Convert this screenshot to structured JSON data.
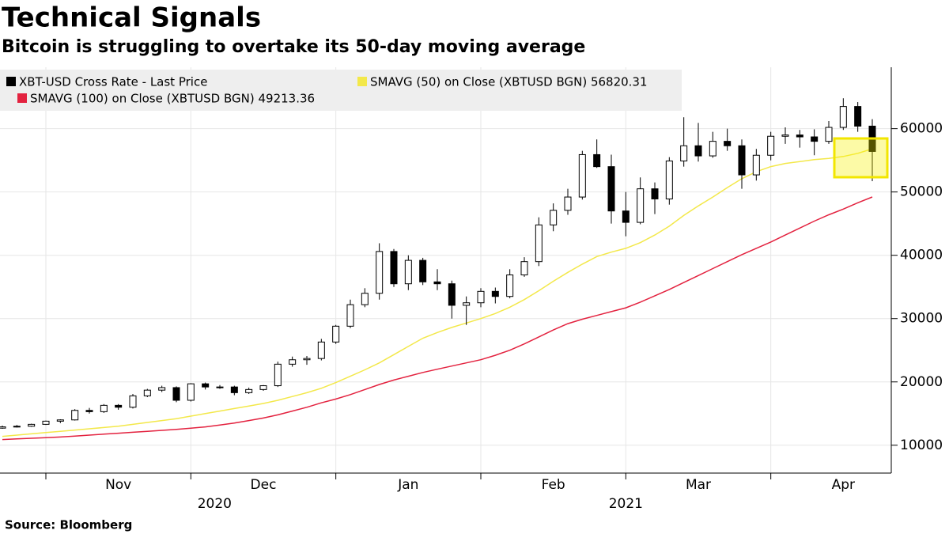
{
  "chart_data": {
    "type": "candlestick",
    "title": "Technical Signals",
    "subtitle": "Bitcoin is struggling to overtake its 50-day moving average",
    "source": "Source: Bloomberg",
    "categories": [
      null,
      null,
      null,
      null,
      null,
      null,
      null,
      null,
      "Nov",
      null,
      null,
      null,
      null,
      null,
      null,
      null,
      null,
      null,
      "Dec",
      null,
      null,
      null,
      null,
      null,
      null,
      null,
      null,
      null,
      "Jan",
      null,
      null,
      null,
      null,
      null,
      null,
      null,
      null,
      null,
      "Feb",
      null,
      null,
      null,
      null,
      null,
      null,
      null,
      null,
      null,
      "Mar",
      null,
      null,
      null,
      null,
      null,
      null,
      null,
      null,
      null,
      "Apr",
      null,
      null
    ],
    "years": [
      "2020",
      "2021"
    ],
    "ylim": [
      5600,
      69700
    ],
    "yticks": [
      10000,
      20000,
      30000,
      40000,
      50000,
      60000
    ],
    "legend": "top-left",
    "grid": true,
    "candles": {
      "name": "XBT-USD Cross Rate - Last Price",
      "color": "#000000",
      "open": [
        12700,
        12900,
        13000,
        13300,
        13800,
        14000,
        15500,
        15300,
        16300,
        16000,
        17800,
        18700,
        19100,
        17100,
        19700,
        19200,
        19200,
        18300,
        18800,
        19400,
        22800,
        23500,
        23700,
        26300,
        28800,
        32200,
        34000,
        40600,
        35500,
        39200,
        35800,
        35500,
        32100,
        32500,
        34300,
        33500,
        36900,
        39000,
        44800,
        47100,
        49200,
        55900,
        54000,
        47000,
        45200,
        50500,
        48900,
        54900,
        57300,
        55700,
        58000,
        57300,
        52700,
        55800,
        58800,
        59000,
        58700,
        58000,
        60200,
        63500,
        60400
      ],
      "high": [
        13100,
        13200,
        13400,
        13900,
        14100,
        15700,
        15900,
        16500,
        16500,
        18100,
        18900,
        19400,
        19300,
        19800,
        19900,
        19500,
        19400,
        19100,
        19500,
        23200,
        24000,
        24100,
        26800,
        29000,
        33000,
        34800,
        41900,
        41000,
        40000,
        39600,
        37800,
        36000,
        33500,
        34800,
        34900,
        37800,
        39700,
        46000,
        48200,
        50500,
        56500,
        58300,
        55900,
        50000,
        52300,
        51500,
        55500,
        61800,
        60900,
        59500,
        60000,
        58300,
        56800,
        59500,
        60200,
        59800,
        59900,
        61200,
        64800,
        64200,
        61500
      ],
      "low": [
        12600,
        12800,
        12900,
        13200,
        13500,
        13900,
        15000,
        15100,
        15600,
        15800,
        17600,
        18400,
        16800,
        16900,
        18800,
        18900,
        17900,
        18100,
        18600,
        19200,
        22400,
        22700,
        23400,
        26000,
        28500,
        31800,
        33000,
        35000,
        34500,
        35300,
        34500,
        30000,
        29000,
        31800,
        32400,
        33200,
        36600,
        38300,
        43800,
        46400,
        48800,
        53800,
        45000,
        43000,
        44900,
        46500,
        48000,
        54000,
        54800,
        55400,
        56500,
        50500,
        51800,
        55000,
        57600,
        57000,
        55800,
        57600,
        59800,
        59500,
        51700
      ],
      "close": [
        12900,
        13000,
        13300,
        13800,
        14000,
        15500,
        15300,
        16300,
        16000,
        17800,
        18700,
        19100,
        17100,
        19700,
        19200,
        19200,
        18300,
        18800,
        19400,
        22800,
        23500,
        23700,
        26300,
        28800,
        32200,
        34000,
        40600,
        35500,
        39200,
        35800,
        35500,
        32100,
        32500,
        34300,
        33500,
        36900,
        39000,
        44800,
        47100,
        49200,
        55900,
        54000,
        47000,
        45200,
        50500,
        48900,
        54900,
        57300,
        55700,
        58000,
        57300,
        52700,
        55800,
        58800,
        59000,
        58700,
        58000,
        60200,
        63500,
        60400,
        56400
      ]
    },
    "series": [
      {
        "name": "SMAVG (50)  on Close (XBTUSD BGN) 56820.31",
        "color": "#f3e84a",
        "values": [
          11400,
          11600,
          11800,
          12000,
          12200,
          12400,
          12600,
          12800,
          13000,
          13300,
          13600,
          13900,
          14200,
          14600,
          15000,
          15400,
          15800,
          16200,
          16600,
          17100,
          17700,
          18300,
          19000,
          19900,
          20900,
          21900,
          23000,
          24300,
          25600,
          26900,
          27800,
          28600,
          29300,
          30000,
          30800,
          31800,
          33000,
          34400,
          35900,
          37300,
          38600,
          39800,
          40500,
          41100,
          42000,
          43200,
          44600,
          46300,
          47800,
          49200,
          50700,
          52100,
          53200,
          54000,
          54500,
          54800,
          55100,
          55300,
          55600,
          56100,
          56820
        ]
      },
      {
        "name": "SMAVG (100)  on Close (XBTUSD BGN) 49213.36",
        "color": "#e3223f",
        "values": [
          10900,
          11000,
          11100,
          11200,
          11300,
          11450,
          11600,
          11750,
          11900,
          12050,
          12200,
          12350,
          12500,
          12700,
          12900,
          13200,
          13500,
          13900,
          14300,
          14800,
          15400,
          16000,
          16700,
          17300,
          18000,
          18800,
          19600,
          20300,
          20900,
          21500,
          22000,
          22500,
          23000,
          23500,
          24200,
          25000,
          26000,
          27100,
          28200,
          29200,
          29900,
          30500,
          31100,
          31700,
          32600,
          33600,
          34600,
          35700,
          36800,
          37900,
          39000,
          40100,
          41100,
          42100,
          43200,
          44300,
          45400,
          46400,
          47300,
          48300,
          49213
        ]
      }
    ]
  }
}
